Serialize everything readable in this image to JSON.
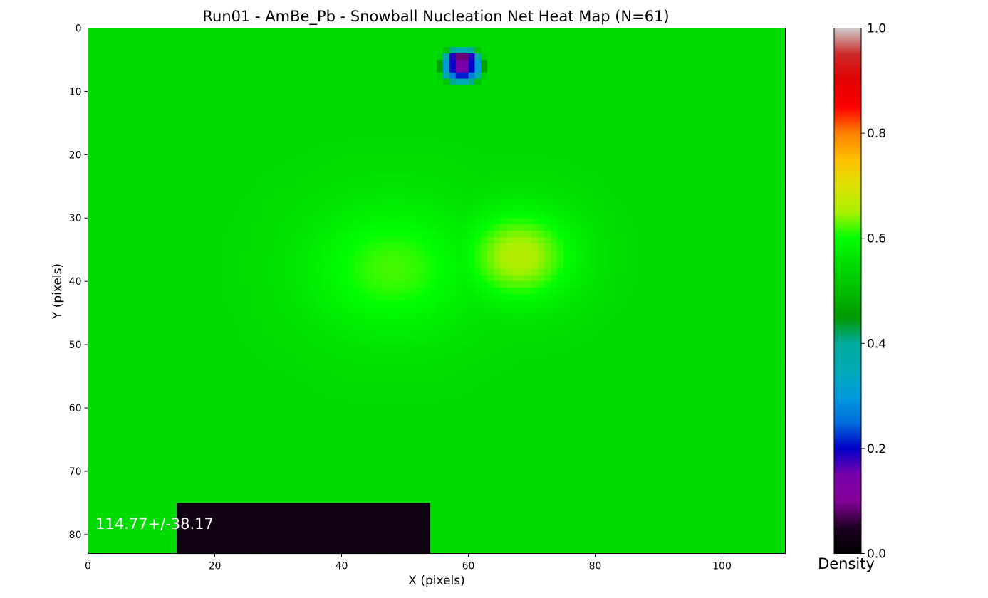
{
  "chart_data": {
    "type": "heatmap",
    "title": "Run01 - AmBe_Pb - Snowball Nucleation Net Heat Map (N=61)",
    "xlabel": "X (pixels)",
    "ylabel": "Y (pixels)",
    "xlim": [
      0,
      110
    ],
    "ylim": [
      83,
      0
    ],
    "xticks": [
      "0",
      "20",
      "40",
      "60",
      "80",
      "100"
    ],
    "yticks": [
      "0",
      "10",
      "20",
      "30",
      "40",
      "50",
      "60",
      "70",
      "80"
    ],
    "colorbar": {
      "label": "Density",
      "range": [
        0.0,
        1.0
      ],
      "ticks": [
        "0.0",
        "0.2",
        "0.4",
        "0.6",
        "0.8",
        "1.0"
      ],
      "colormap": "nipy_spectral"
    },
    "annotation": "114.77+/-38.17",
    "grid_shape": [
      83,
      110
    ],
    "features": [
      {
        "kind": "body-base",
        "cx": 54,
        "cy": 42,
        "rx": 46,
        "ry": 40,
        "peak": 0.42
      },
      {
        "kind": "body-core",
        "cx": 54,
        "cy": 42,
        "rx": 37,
        "ry": 34,
        "peak": 0.55
      },
      {
        "kind": "hotspot",
        "cx": 68,
        "cy": 36,
        "sx": 6,
        "sy": 5,
        "peak": 0.66
      },
      {
        "kind": "hotspot",
        "cx": 48,
        "cy": 38,
        "sx": 9,
        "sy": 7,
        "peak": 0.62
      },
      {
        "kind": "hole",
        "cx": 59,
        "cy": 6,
        "sx": 4,
        "sy": 3.5,
        "value": 0.13
      },
      {
        "kind": "hole",
        "cx": 59,
        "cy": 4.5,
        "sx": 2,
        "sy": 1,
        "value": 0.08
      },
      {
        "kind": "cutout",
        "x0": 14,
        "x1": 54,
        "y0": 75.5,
        "y1": 83,
        "value": 0.03
      }
    ]
  }
}
